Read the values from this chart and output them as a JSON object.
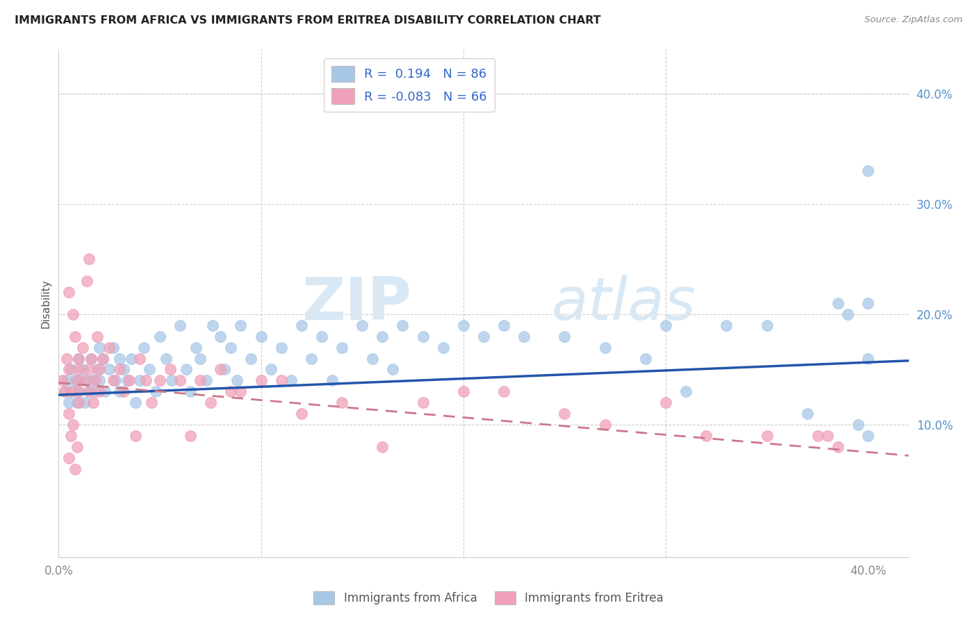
{
  "title": "IMMIGRANTS FROM AFRICA VS IMMIGRANTS FROM ERITREA DISABILITY CORRELATION CHART",
  "source": "Source: ZipAtlas.com",
  "ylabel": "Disability",
  "xlim": [
    0.0,
    0.42
  ],
  "ylim": [
    -0.02,
    0.44
  ],
  "yticks": [
    0.1,
    0.2,
    0.3,
    0.4
  ],
  "ytick_labels": [
    "10.0%",
    "20.0%",
    "30.0%",
    "40.0%"
  ],
  "xtick_vals": [
    0.0,
    0.1,
    0.2,
    0.3,
    0.4
  ],
  "xtick_labels": [
    "0.0%",
    "",
    "",
    "",
    "40.0%"
  ],
  "blue_color": "#a8c8e8",
  "pink_color": "#f0a0b8",
  "trend_blue": "#2255aa",
  "trend_pink": "#cc7788",
  "background_color": "#ffffff",
  "grid_color": "#cccccc",
  "watermark_zip": "ZIP",
  "watermark_atlas": "atlas",
  "africa_R": 0.194,
  "africa_N": 86,
  "eritrea_R": -0.083,
  "eritrea_N": 66,
  "africa_trend_x0": 0.0,
  "africa_trend_y0": 0.127,
  "africa_trend_x1": 0.42,
  "africa_trend_y1": 0.158,
  "eritrea_trend_x0": 0.0,
  "eritrea_trend_y0": 0.138,
  "eritrea_trend_x1": 0.42,
  "eritrea_trend_y1": 0.072,
  "africa_x": [
    0.003,
    0.004,
    0.005,
    0.006,
    0.007,
    0.008,
    0.009,
    0.01,
    0.01,
    0.01,
    0.012,
    0.013,
    0.014,
    0.015,
    0.016,
    0.017,
    0.018,
    0.019,
    0.02,
    0.02,
    0.022,
    0.023,
    0.025,
    0.027,
    0.028,
    0.03,
    0.03,
    0.032,
    0.034,
    0.036,
    0.038,
    0.04,
    0.042,
    0.045,
    0.048,
    0.05,
    0.053,
    0.056,
    0.06,
    0.063,
    0.065,
    0.068,
    0.07,
    0.073,
    0.076,
    0.08,
    0.082,
    0.085,
    0.088,
    0.09,
    0.095,
    0.1,
    0.105,
    0.11,
    0.115,
    0.12,
    0.125,
    0.13,
    0.135,
    0.14,
    0.15,
    0.155,
    0.16,
    0.165,
    0.17,
    0.18,
    0.19,
    0.2,
    0.21,
    0.22,
    0.23,
    0.25,
    0.27,
    0.29,
    0.3,
    0.31,
    0.33,
    0.35,
    0.37,
    0.385,
    0.39,
    0.395,
    0.4,
    0.4,
    0.4,
    0.4
  ],
  "africa_y": [
    0.13,
    0.14,
    0.12,
    0.15,
    0.13,
    0.14,
    0.12,
    0.16,
    0.13,
    0.14,
    0.15,
    0.12,
    0.14,
    0.13,
    0.16,
    0.14,
    0.13,
    0.15,
    0.17,
    0.14,
    0.16,
    0.13,
    0.15,
    0.17,
    0.14,
    0.16,
    0.13,
    0.15,
    0.14,
    0.16,
    0.12,
    0.14,
    0.17,
    0.15,
    0.13,
    0.18,
    0.16,
    0.14,
    0.19,
    0.15,
    0.13,
    0.17,
    0.16,
    0.14,
    0.19,
    0.18,
    0.15,
    0.17,
    0.14,
    0.19,
    0.16,
    0.18,
    0.15,
    0.17,
    0.14,
    0.19,
    0.16,
    0.18,
    0.14,
    0.17,
    0.19,
    0.16,
    0.18,
    0.15,
    0.19,
    0.18,
    0.17,
    0.19,
    0.18,
    0.19,
    0.18,
    0.18,
    0.17,
    0.16,
    0.19,
    0.13,
    0.19,
    0.19,
    0.11,
    0.21,
    0.2,
    0.1,
    0.33,
    0.21,
    0.09,
    0.16
  ],
  "eritrea_x": [
    0.002,
    0.003,
    0.004,
    0.005,
    0.005,
    0.005,
    0.006,
    0.007,
    0.008,
    0.009,
    0.01,
    0.01,
    0.01,
    0.01,
    0.012,
    0.013,
    0.014,
    0.015,
    0.015,
    0.016,
    0.017,
    0.018,
    0.019,
    0.02,
    0.02,
    0.022,
    0.025,
    0.027,
    0.03,
    0.032,
    0.035,
    0.038,
    0.04,
    0.043,
    0.046,
    0.05,
    0.055,
    0.06,
    0.065,
    0.07,
    0.075,
    0.08,
    0.085,
    0.09,
    0.1,
    0.11,
    0.12,
    0.14,
    0.16,
    0.18,
    0.2,
    0.22,
    0.25,
    0.27,
    0.3,
    0.32,
    0.35,
    0.375,
    0.38,
    0.385,
    0.005,
    0.006,
    0.007,
    0.008,
    0.009,
    0.015
  ],
  "eritrea_y": [
    0.14,
    0.13,
    0.16,
    0.22,
    0.15,
    0.11,
    0.13,
    0.2,
    0.18,
    0.14,
    0.16,
    0.13,
    0.15,
    0.12,
    0.17,
    0.14,
    0.23,
    0.15,
    0.13,
    0.16,
    0.12,
    0.14,
    0.18,
    0.15,
    0.13,
    0.16,
    0.17,
    0.14,
    0.15,
    0.13,
    0.14,
    0.09,
    0.16,
    0.14,
    0.12,
    0.14,
    0.15,
    0.14,
    0.09,
    0.14,
    0.12,
    0.15,
    0.13,
    0.13,
    0.14,
    0.14,
    0.11,
    0.12,
    0.08,
    0.12,
    0.13,
    0.13,
    0.11,
    0.1,
    0.12,
    0.09,
    0.09,
    0.09,
    0.09,
    0.08,
    0.07,
    0.09,
    0.1,
    0.06,
    0.08,
    0.25
  ]
}
